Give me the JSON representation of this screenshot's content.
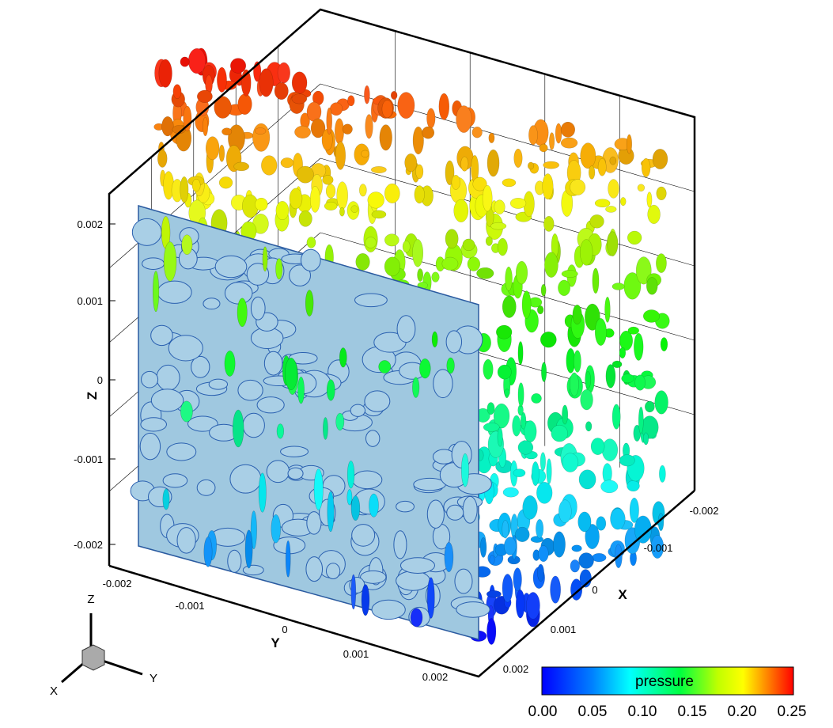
{
  "axes": {
    "z": {
      "label": "Z",
      "ticks": [
        "0.002",
        "0.001",
        "0",
        "-0.001",
        "-0.002"
      ]
    },
    "y": {
      "label": "Y",
      "ticks": [
        "-0.002",
        "-0.001",
        "0",
        "0.001",
        "0.002"
      ]
    },
    "x": {
      "label": "X",
      "ticks": [
        "-0.002",
        "-0.001",
        "0",
        "0.001",
        "0.002"
      ]
    }
  },
  "triad": {
    "z": "Z",
    "y": "Y",
    "x": "X"
  },
  "colorbar": {
    "title": "pressure",
    "ticks": [
      "0.00",
      "0.05",
      "0.10",
      "0.15",
      "0.20",
      "0.25"
    ]
  }
}
